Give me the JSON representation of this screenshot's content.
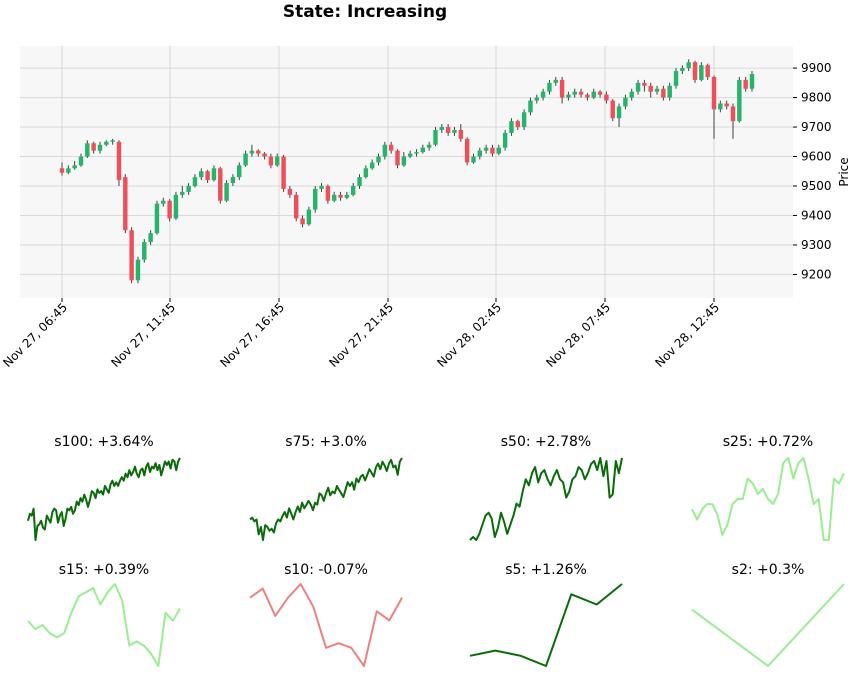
{
  "title": "State: Increasing",
  "colors": {
    "up": "#26b36a",
    "down": "#ef4f5a",
    "wick": "#404040",
    "panel_bg": "#f7f7f7",
    "grid": "#d9d9d9",
    "dark_green": "#0a6b0a",
    "light_green": "#98ee90",
    "light_red": "#ef8080"
  },
  "chart_data": [
    {
      "type": "candlestick",
      "ylabel": "Price",
      "ylim": [
        9120,
        9975
      ],
      "y_ticks": [
        9200,
        9300,
        9400,
        9500,
        9600,
        9700,
        9800,
        9900
      ],
      "x_tick_labels": [
        "Nov 27, 06:45",
        "Nov 27, 11:45",
        "Nov 27, 16:45",
        "Nov 27, 21:45",
        "Nov 28, 02:45",
        "Nov 28, 07:45",
        "Nov 28, 12:45"
      ],
      "grid": true,
      "candles": [
        [
          9560,
          9545,
          9580,
          9535
        ],
        [
          9545,
          9560,
          9570,
          9540
        ],
        [
          9560,
          9570,
          9585,
          9555
        ],
        [
          9570,
          9600,
          9610,
          9565
        ],
        [
          9600,
          9645,
          9655,
          9595
        ],
        [
          9645,
          9620,
          9650,
          9610
        ],
        [
          9620,
          9640,
          9650,
          9610
        ],
        [
          9640,
          9650,
          9655,
          9635
        ],
        [
          9650,
          9655,
          9660,
          9640
        ],
        [
          9650,
          9520,
          9655,
          9500
        ],
        [
          9530,
          9350,
          9540,
          9340
        ],
        [
          9350,
          9180,
          9360,
          9170
        ],
        [
          9180,
          9250,
          9260,
          9170
        ],
        [
          9250,
          9310,
          9320,
          9240
        ],
        [
          9310,
          9340,
          9350,
          9300
        ],
        [
          9340,
          9440,
          9450,
          9335
        ],
        [
          9440,
          9450,
          9460,
          9430
        ],
        [
          9450,
          9390,
          9455,
          9380
        ],
        [
          9390,
          9470,
          9480,
          9385
        ],
        [
          9470,
          9480,
          9500,
          9460
        ],
        [
          9480,
          9500,
          9510,
          9470
        ],
        [
          9500,
          9530,
          9540,
          9495
        ],
        [
          9530,
          9550,
          9560,
          9520
        ],
        [
          9550,
          9520,
          9555,
          9510
        ],
        [
          9520,
          9560,
          9570,
          9515
        ],
        [
          9560,
          9450,
          9565,
          9440
        ],
        [
          9450,
          9510,
          9520,
          9445
        ],
        [
          9510,
          9530,
          9540,
          9500
        ],
        [
          9530,
          9570,
          9580,
          9520
        ],
        [
          9570,
          9610,
          9620,
          9565
        ],
        [
          9610,
          9620,
          9640,
          9600
        ],
        [
          9620,
          9610,
          9625,
          9600
        ],
        [
          9610,
          9600,
          9615,
          9590
        ],
        [
          9600,
          9570,
          9610,
          9560
        ],
        [
          9570,
          9600,
          9610,
          9565
        ],
        [
          9600,
          9490,
          9605,
          9480
        ],
        [
          9490,
          9470,
          9500,
          9460
        ],
        [
          9470,
          9390,
          9480,
          9380
        ],
        [
          9390,
          9370,
          9400,
          9360
        ],
        [
          9370,
          9420,
          9430,
          9365
        ],
        [
          9420,
          9490,
          9500,
          9410
        ],
        [
          9490,
          9500,
          9510,
          9480
        ],
        [
          9500,
          9450,
          9505,
          9440
        ],
        [
          9450,
          9470,
          9480,
          9445
        ],
        [
          9470,
          9460,
          9480,
          9450
        ],
        [
          9460,
          9470,
          9480,
          9455
        ],
        [
          9470,
          9500,
          9510,
          9465
        ],
        [
          9500,
          9530,
          9540,
          9490
        ],
        [
          9530,
          9560,
          9570,
          9525
        ],
        [
          9560,
          9580,
          9590,
          9555
        ],
        [
          9580,
          9600,
          9610,
          9570
        ],
        [
          9600,
          9640,
          9650,
          9590
        ],
        [
          9640,
          9620,
          9650,
          9610
        ],
        [
          9620,
          9570,
          9625,
          9560
        ],
        [
          9570,
          9600,
          9615,
          9565
        ],
        [
          9600,
          9610,
          9620,
          9595
        ],
        [
          9610,
          9615,
          9625,
          9600
        ],
        [
          9615,
          9630,
          9640,
          9610
        ],
        [
          9630,
          9640,
          9650,
          9620
        ],
        [
          9640,
          9690,
          9700,
          9635
        ],
        [
          9690,
          9700,
          9710,
          9680
        ],
        [
          9700,
          9680,
          9710,
          9670
        ],
        [
          9680,
          9690,
          9700,
          9670
        ],
        [
          9690,
          9660,
          9710,
          9650
        ],
        [
          9660,
          9580,
          9665,
          9570
        ],
        [
          9580,
          9600,
          9610,
          9575
        ],
        [
          9600,
          9620,
          9630,
          9590
        ],
        [
          9620,
          9630,
          9640,
          9610
        ],
        [
          9630,
          9610,
          9640,
          9600
        ],
        [
          9610,
          9630,
          9640,
          9605
        ],
        [
          9630,
          9680,
          9690,
          9620
        ],
        [
          9680,
          9720,
          9730,
          9670
        ],
        [
          9720,
          9700,
          9725,
          9690
        ],
        [
          9700,
          9750,
          9760,
          9690
        ],
        [
          9750,
          9790,
          9800,
          9740
        ],
        [
          9790,
          9800,
          9810,
          9780
        ],
        [
          9800,
          9820,
          9830,
          9790
        ],
        [
          9820,
          9850,
          9860,
          9810
        ],
        [
          9850,
          9860,
          9870,
          9840
        ],
        [
          9860,
          9800,
          9870,
          9780
        ],
        [
          9800,
          9810,
          9820,
          9790
        ],
        [
          9810,
          9820,
          9830,
          9800
        ],
        [
          9820,
          9810,
          9830,
          9800
        ],
        [
          9810,
          9800,
          9815,
          9790
        ],
        [
          9800,
          9820,
          9830,
          9795
        ],
        [
          9820,
          9810,
          9825,
          9800
        ],
        [
          9810,
          9790,
          9820,
          9780
        ],
        [
          9790,
          9730,
          9795,
          9720
        ],
        [
          9730,
          9770,
          9780,
          9700
        ],
        [
          9770,
          9800,
          9810,
          9760
        ],
        [
          9800,
          9820,
          9830,
          9790
        ],
        [
          9820,
          9850,
          9860,
          9810
        ],
        [
          9850,
          9840,
          9860,
          9820
        ],
        [
          9840,
          9820,
          9850,
          9800
        ],
        [
          9820,
          9830,
          9840,
          9810
        ],
        [
          9830,
          9800,
          9840,
          9790
        ],
        [
          9800,
          9840,
          9850,
          9790
        ],
        [
          9840,
          9890,
          9900,
          9830
        ],
        [
          9890,
          9900,
          9910,
          9880
        ],
        [
          9900,
          9920,
          9930,
          9890
        ],
        [
          9920,
          9860,
          9925,
          9850
        ],
        [
          9860,
          9910,
          9920,
          9855
        ],
        [
          9910,
          9870,
          9915,
          9860
        ],
        [
          9870,
          9760,
          9875,
          9660
        ],
        [
          9760,
          9780,
          9790,
          9750
        ],
        [
          9780,
          9770,
          9790,
          9760
        ],
        [
          9770,
          9720,
          9780,
          9660
        ],
        [
          9720,
          9860,
          9870,
          9715
        ],
        [
          9860,
          9830,
          9870,
          9820
        ],
        [
          9830,
          9880,
          9890,
          9820
        ]
      ]
    },
    {
      "type": "line",
      "title": "s100: +3.64%",
      "color": "dark_green",
      "values": [
        9530,
        9570,
        9560,
        9600,
        9420,
        9500,
        9510,
        9530,
        9490,
        9480,
        9560,
        9540,
        9520,
        9580,
        9600,
        9590,
        9520,
        9560,
        9580,
        9500,
        9540,
        9600,
        9590,
        9610,
        9570,
        9590,
        9640,
        9620,
        9660,
        9640,
        9680,
        9650,
        9610,
        9650,
        9700,
        9690,
        9660,
        9710,
        9690,
        9700,
        9680,
        9730,
        9710,
        9690,
        9740,
        9760,
        9730,
        9750,
        9730,
        9760,
        9780,
        9760,
        9800,
        9780,
        9820,
        9790,
        9810,
        9840,
        9800,
        9780,
        9820,
        9830,
        9790,
        9840,
        9860,
        9810,
        9840,
        9830,
        9860,
        9820,
        9850,
        9790,
        9830,
        9870,
        9850,
        9870,
        9830,
        9880,
        9870,
        9820,
        9870,
        9890
      ]
    },
    {
      "type": "line",
      "title": "s75: +3.0%",
      "color": "dark_green",
      "values": [
        9560,
        9570,
        9550,
        9560,
        9480,
        9520,
        9450,
        9530,
        9520,
        9500,
        9510,
        9490,
        9540,
        9560,
        9550,
        9580,
        9600,
        9570,
        9620,
        9590,
        9560,
        9600,
        9630,
        9600,
        9650,
        9620,
        9640,
        9660,
        9640,
        9610,
        9650,
        9640,
        9700,
        9690,
        9660,
        9700,
        9730,
        9690,
        9710,
        9700,
        9740,
        9720,
        9700,
        9680,
        9720,
        9760,
        9740,
        9760,
        9720,
        9780,
        9760,
        9790,
        9800,
        9770,
        9800,
        9830,
        9810,
        9790,
        9840,
        9860,
        9830,
        9870,
        9850,
        9820,
        9860,
        9880,
        9840,
        9850,
        9800,
        9870,
        9890
      ]
    },
    {
      "type": "line",
      "title": "s50: +2.78%",
      "color": "dark_green",
      "values": [
        9600,
        9610,
        9600,
        9620,
        9650,
        9680,
        9690,
        9670,
        9610,
        9640,
        9690,
        9660,
        9620,
        9650,
        9680,
        9720,
        9710,
        9760,
        9800,
        9780,
        9820,
        9840,
        9790,
        9820,
        9830,
        9800,
        9780,
        9810,
        9830,
        9800,
        9790,
        9740,
        9760,
        9800,
        9810,
        9840,
        9830,
        9800,
        9820,
        9850,
        9860,
        9830,
        9870,
        9810,
        9860,
        9740,
        9750,
        9860,
        9820,
        9870
      ]
    },
    {
      "type": "line",
      "title": "s25: +0.72%",
      "color": "light_green",
      "values": [
        9820,
        9800,
        9820,
        9830,
        9830,
        9810,
        9770,
        9790,
        9830,
        9840,
        9840,
        9880,
        9870,
        9850,
        9860,
        9840,
        9830,
        9850,
        9910,
        9920,
        9880,
        9910,
        9920,
        9880,
        9830,
        9840,
        9760,
        9760,
        9880,
        9870,
        9890
      ]
    },
    {
      "type": "line",
      "title": "s15: +0.39%",
      "color": "light_green",
      "values": [
        9830,
        9810,
        9820,
        9800,
        9790,
        9800,
        9850,
        9890,
        9900,
        9910,
        9870,
        9900,
        9920,
        9880,
        9770,
        9780,
        9770,
        9750,
        9720,
        9850,
        9830,
        9860
      ]
    },
    {
      "type": "line",
      "title": "s10: -0.07%",
      "color": "light_red",
      "values": [
        9880,
        9900,
        9840,
        9880,
        9910,
        9860,
        9770,
        9780,
        9770,
        9730,
        9850,
        9830,
        9880
      ]
    },
    {
      "type": "line",
      "title": "s5: +1.26%",
      "color": "dark_green",
      "values": [
        9740,
        9750,
        9740,
        9720,
        9860,
        9840,
        9880
      ]
    },
    {
      "type": "line",
      "title": "s2: +0.3%",
      "color": "light_green",
      "values": [
        9830,
        9720,
        9880
      ]
    }
  ]
}
